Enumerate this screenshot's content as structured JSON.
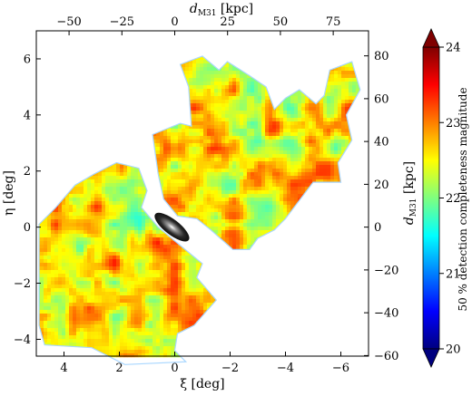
{
  "chart_data": {
    "type": "heatmap",
    "xlabel": "ξ [deg]",
    "ylabel": "η [deg]",
    "top_xlabel": "d_M31 [kpc]",
    "right_ylabel": "d_M31 [kpc]",
    "colorbar_label": "50 % detection completeness magnitude",
    "xlim": [
      5,
      -7
    ],
    "ylim": [
      -4.6,
      7.0
    ],
    "x_ticks": [
      4,
      2,
      0,
      -2,
      -4,
      -6
    ],
    "y_ticks": [
      -4,
      -2,
      0,
      2,
      4,
      6
    ],
    "top_ticks": [
      -50,
      -25,
      0,
      25,
      50,
      75
    ],
    "right_ticks": [
      -60,
      -40,
      -20,
      0,
      20,
      40,
      60,
      80
    ],
    "colorbar_range": [
      20,
      24
    ],
    "colorbar_ticks": [
      20,
      21,
      22,
      23,
      24
    ],
    "colorscale": [
      "#00007f",
      "#0000ff",
      "#007fff",
      "#00ffff",
      "#7fff7f",
      "#ffff00",
      "#ff7f00",
      "#ff0000",
      "#7f0000"
    ],
    "grid": false,
    "regions": {
      "south_west_field": [
        [
          4.9,
          0.1
        ],
        [
          4.3,
          0.7
        ],
        [
          3.6,
          1.5
        ],
        [
          2.9,
          1.9
        ],
        [
          2.1,
          2.3
        ],
        [
          1.3,
          2.1
        ],
        [
          1.0,
          1.3
        ],
        [
          1.2,
          0.7
        ],
        [
          0.6,
          0.0
        ],
        [
          -0.5,
          -0.9
        ],
        [
          -1.0,
          -1.3
        ],
        [
          -0.8,
          -1.8
        ],
        [
          -1.5,
          -2.6
        ],
        [
          -0.7,
          -3.5
        ],
        [
          -0.1,
          -3.8
        ],
        [
          0.0,
          -4.4
        ],
        [
          -0.4,
          -4.8
        ],
        [
          1.8,
          -4.9
        ],
        [
          3.0,
          -4.3
        ],
        [
          4.7,
          -4.2
        ],
        [
          4.9,
          -3.5
        ],
        [
          4.9,
          -1.0
        ]
      ],
      "north_east_field": [
        [
          0.4,
          1.0
        ],
        [
          0.6,
          1.9
        ],
        [
          0.8,
          3.3
        ],
        [
          -0.2,
          3.7
        ],
        [
          -0.6,
          3.6
        ],
        [
          -0.5,
          5.0
        ],
        [
          -0.2,
          5.8
        ],
        [
          -1.0,
          6.1
        ],
        [
          -1.6,
          5.6
        ],
        [
          -1.9,
          5.9
        ],
        [
          -2.7,
          5.4
        ],
        [
          -3.3,
          5.0
        ],
        [
          -3.6,
          4.2
        ],
        [
          -4.0,
          4.6
        ],
        [
          -4.5,
          4.9
        ],
        [
          -5.1,
          4.4
        ],
        [
          -5.4,
          4.7
        ],
        [
          -5.6,
          5.6
        ],
        [
          -6.4,
          5.9
        ],
        [
          -6.7,
          4.9
        ],
        [
          -6.2,
          4.0
        ],
        [
          -6.4,
          3.1
        ],
        [
          -5.9,
          2.3
        ],
        [
          -6.0,
          1.6
        ],
        [
          -5.0,
          1.6
        ],
        [
          -4.0,
          0.3
        ],
        [
          -3.6,
          -0.1
        ],
        [
          -3.0,
          -0.4
        ],
        [
          -2.7,
          -0.8
        ],
        [
          -2.1,
          -0.8
        ],
        [
          -1.3,
          -0.1
        ],
        [
          -0.8,
          0.3
        ],
        [
          -0.1,
          0.4
        ]
      ]
    },
    "m31_disk": {
      "xi": 0.1,
      "eta": 0.0,
      "color": "#1a1a1a"
    },
    "noise_seed": 7
  }
}
